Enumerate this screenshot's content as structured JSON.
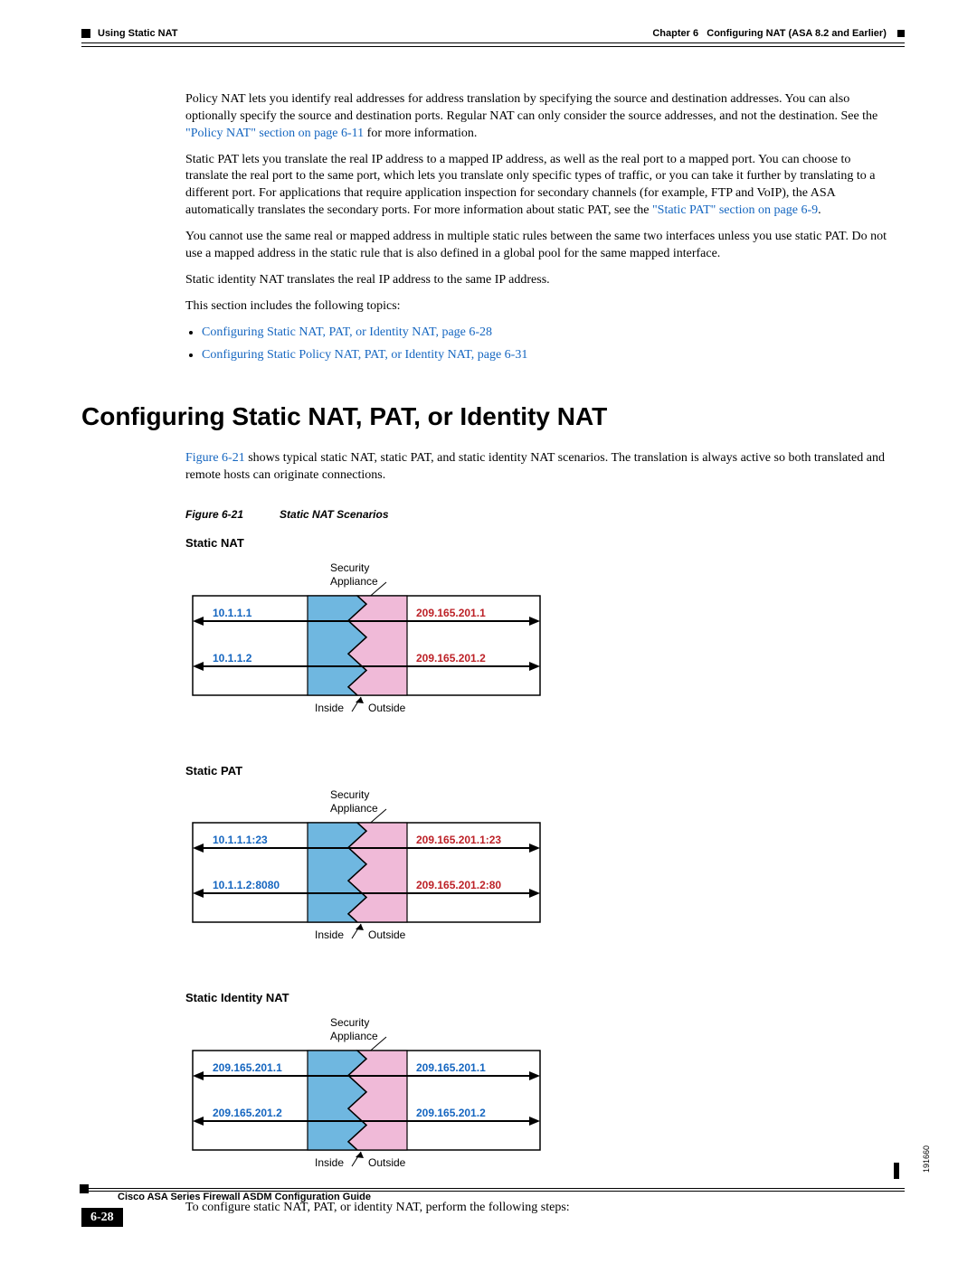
{
  "header": {
    "chapter": "Chapter 6",
    "chapterTitle": "Configuring NAT (ASA 8.2 and Earlier)",
    "sectionLabel": "Using Static NAT"
  },
  "paragraphs": {
    "p1a": "Policy NAT lets you identify real addresses for address translation by specifying the source and destination addresses. You can also optionally specify the source and destination ports. Regular NAT can only consider the source addresses, and not the destination. See the ",
    "p1link": "\"Policy NAT\" section on page 6-11",
    "p1b": " for more information.",
    "p2a": "Static PAT lets you translate the real IP address to a mapped IP address, as well as the real port to a mapped port. You can choose to translate the real port to the same port, which lets you translate only specific types of traffic, or you can take it further by translating to a different port. For applications that require application inspection for secondary channels (for example, FTP and VoIP), the ASA automatically translates the secondary ports. For more information about static PAT, see the ",
    "p2link": "\"Static PAT\" section on page 6-9",
    "p2b": ".",
    "p3": "You cannot use the same real or mapped address in multiple static rules between the same two interfaces unless you use static PAT. Do not use a mapped address in the static rule that is also defined in a global pool for the same mapped interface.",
    "p4": "Static identity NAT translates the real IP address to the same IP address.",
    "p5": "This section includes the following topics:",
    "bullet1": "Configuring Static NAT, PAT, or Identity NAT, page 6-28",
    "bullet2": "Configuring Static Policy NAT, PAT, or Identity NAT, page 6-31",
    "afterFigLink": "Figure 6-21",
    "afterFig": " shows typical static NAT, static PAT, and static identity NAT scenarios. The translation is always active so both translated and remote hosts can originate connections.",
    "closing": "To configure static NAT, PAT, or identity NAT, perform the following steps:"
  },
  "heading": "Configuring Static NAT, PAT, or Identity NAT",
  "figure": {
    "number": "Figure 6-21",
    "title": "Static NAT Scenarios",
    "imageCode": "191660",
    "labels": {
      "security": "Security",
      "appliance": "Appliance",
      "inside": "Inside",
      "outside": "Outside"
    },
    "diagrams": [
      {
        "title": "Static NAT",
        "left1": "10.1.1.1",
        "right1": "209.165.201.1",
        "left2": "10.1.1.2",
        "right2": "209.165.201.2",
        "leftColor": "#1566c0",
        "rightColor": "#bd2228"
      },
      {
        "title": "Static PAT",
        "left1": "10.1.1.1:23",
        "right1": "209.165.201.1:23",
        "left2": "10.1.1.2:8080",
        "right2": "209.165.201.2:80",
        "leftColor": "#1566c0",
        "rightColor": "#bd2228"
      },
      {
        "title": "Static Identity NAT",
        "left1": "209.165.201.1",
        "right1": "209.165.201.1",
        "left2": "209.165.201.2",
        "right2": "209.165.201.2",
        "leftColor": "#1566c0",
        "rightColor": "#1566c0"
      }
    ],
    "colors": {
      "insideFill": "#6fb7e0",
      "outsideFill": "#f0bad8",
      "border": "#000"
    }
  },
  "footer": {
    "pageNumber": "6-28",
    "bookTitle": "Cisco ASA Series Firewall ASDM Configuration Guide"
  }
}
